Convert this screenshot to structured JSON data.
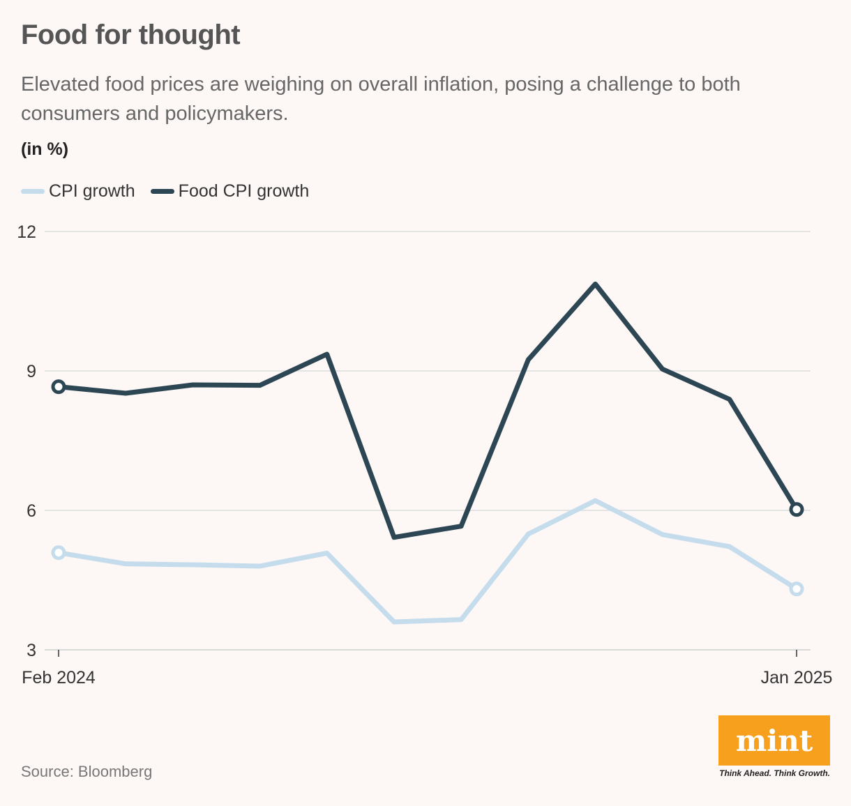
{
  "header": {
    "title": "Food for thought",
    "subtitle": "Elevated food prices are weighing on overall inflation, posing a challenge to both consumers and policymakers.",
    "unit": "(in %)"
  },
  "legend": {
    "cpi_label": "CPI growth",
    "food_label": "Food CPI growth"
  },
  "colors": {
    "cpi": "#c5dcec",
    "food": "#2d4654",
    "grid": "#dddddd",
    "background": "#fdf7f6",
    "brand": "#f7a01e"
  },
  "chart_data": {
    "type": "line",
    "title": "Food for thought",
    "ylabel": "(in %)",
    "xlabel": "",
    "ylim": [
      3,
      12
    ],
    "yticks": [
      3,
      6,
      9,
      12
    ],
    "x": [
      "Feb 2024",
      "Mar 2024",
      "Apr 2024",
      "May 2024",
      "Jun 2024",
      "Jul 2024",
      "Aug 2024",
      "Sep 2024",
      "Oct 2024",
      "Nov 2024",
      "Dec 2024",
      "Jan 2025"
    ],
    "x_tick_labels": [
      "Feb 2024",
      "Jan 2025"
    ],
    "series": [
      {
        "name": "CPI growth",
        "values": [
          5.09,
          4.85,
          4.83,
          4.8,
          5.08,
          3.6,
          3.65,
          5.49,
          6.21,
          5.48,
          5.22,
          4.31
        ]
      },
      {
        "name": "Food CPI growth",
        "values": [
          8.66,
          8.52,
          8.7,
          8.69,
          9.36,
          5.42,
          5.66,
          9.24,
          10.87,
          9.04,
          8.39,
          6.02
        ]
      }
    ]
  },
  "footer": {
    "source": "Source: Bloomberg",
    "logo_text": "mint",
    "tagline": "Think Ahead. Think Growth."
  }
}
